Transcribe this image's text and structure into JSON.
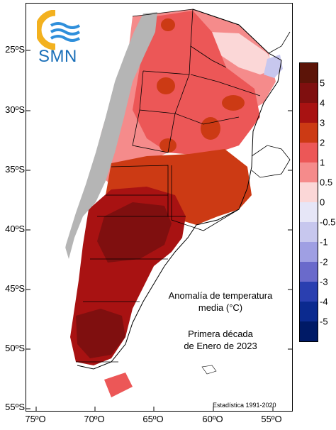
{
  "logo": {
    "text": "SMN",
    "icon": "smn-sun-waves-logo"
  },
  "latitude_labels": [
    "25ºS",
    "30ºS",
    "35ºS",
    "40ºS",
    "45ºS",
    "50ºS",
    "55ºS"
  ],
  "longitude_labels": [
    "75ºO",
    "70ºO",
    "65ºO",
    "60ºO",
    "55ºO"
  ],
  "title": [
    "Anomalía de temperatura",
    "media (°C)"
  ],
  "period": [
    "Primera década",
    "de Enero de 2023"
  ],
  "stats_note": "Estadística 1991-2020",
  "legend": {
    "labels": [
      "5",
      "4",
      "3",
      "2",
      "1",
      "0.5",
      "0",
      "-0.5",
      "-1",
      "-2",
      "-3",
      "-4",
      "-5"
    ],
    "colors": [
      "#5c1408",
      "#7f0f0f",
      "#a81212",
      "#cc3a14",
      "#ec5757",
      "#f58b8b",
      "#fbd7d7",
      "#e6e6f7",
      "#c7c7ee",
      "#9f9fe3",
      "#6a6acb",
      "#2a3fb0",
      "#0b2a8f",
      "#001a66"
    ]
  },
  "colors": {
    "ocean": "#ffffff",
    "andes_gray": "#b5b5b5",
    "chile": "#ffffff",
    "logo_orange": "#f3b11f",
    "logo_blue": "#2f8fdb"
  }
}
